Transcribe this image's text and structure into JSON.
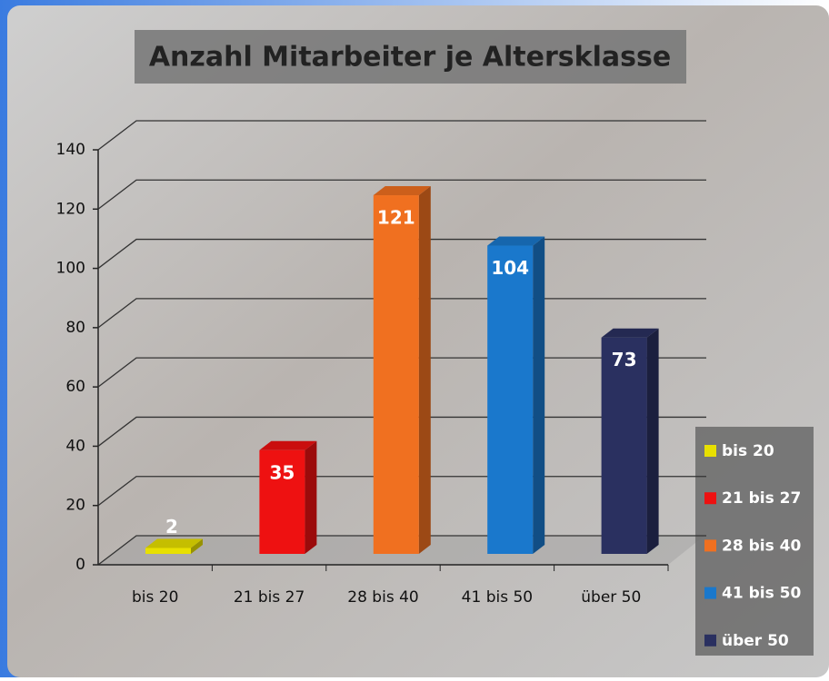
{
  "chart_data": {
    "type": "bar3d",
    "title": "Anzahl Mitarbeiter je Altersklasse",
    "categories": [
      "bis 20",
      "21 bis 27",
      "28 bis 40",
      "41 bis 50",
      "über 50"
    ],
    "values": [
      2,
      35,
      121,
      104,
      73
    ],
    "colors": [
      "#e8e000",
      "#ee1111",
      "#f07020",
      "#1a78cc",
      "#2a3060"
    ],
    "ylim": [
      0,
      140
    ],
    "yticks": [
      0,
      20,
      40,
      60,
      80,
      100,
      120,
      140
    ],
    "grid": true,
    "legend": "right"
  }
}
